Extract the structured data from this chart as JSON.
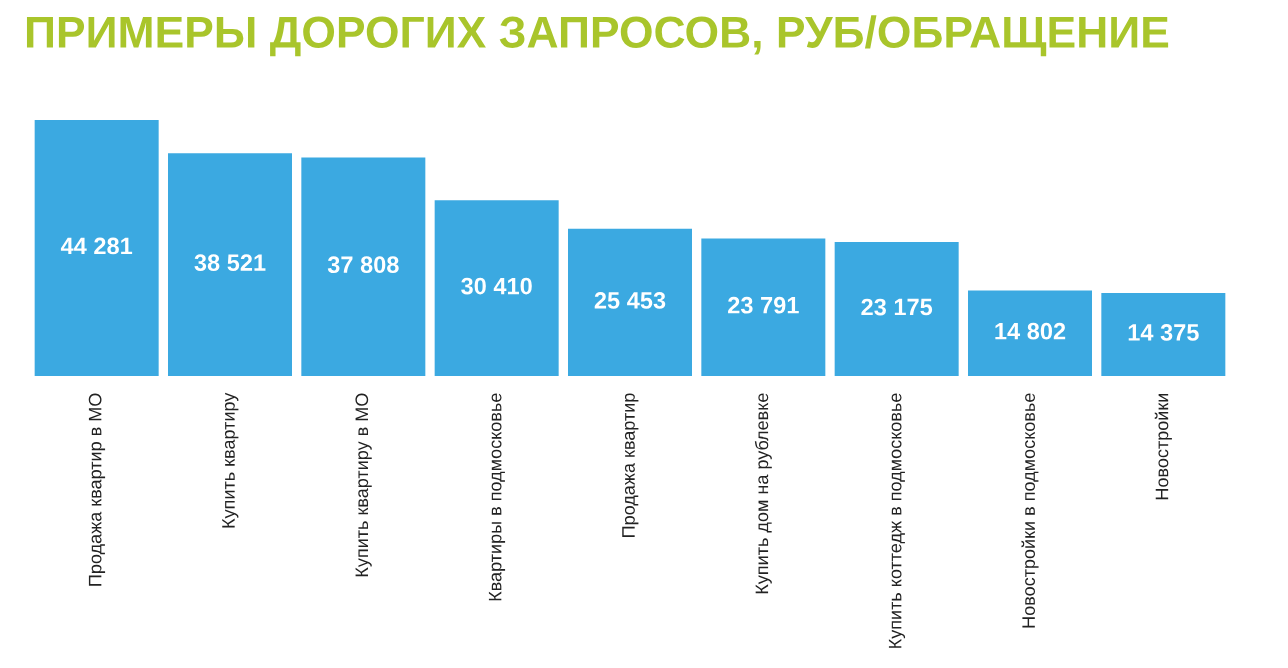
{
  "chart_data": {
    "type": "bar",
    "title": "ПРИМЕРЫ ДОРОГИХ ЗАПРОСОВ, РУБ/ОБРАЩЕНИЕ",
    "categories": [
      "Продажа квартир в МО",
      "Купить квартиру",
      "Купить квартиру в МО",
      "Квартиры в подмосковье",
      "Продажа квартир",
      "Купить дом на рублевке",
      "Купить коттедж в подмосковье",
      "Новостройки в подмосковье",
      "Новостройки"
    ],
    "values": [
      44281,
      38521,
      37808,
      30410,
      25453,
      23791,
      23175,
      14802,
      14375
    ],
    "value_labels": [
      "44 281",
      "38 521",
      "37 808",
      "30 410",
      "25 453",
      "23 791",
      "23 175",
      "14 802",
      "14 375"
    ],
    "color": "#3ba9e1",
    "tick_labels": "x",
    "grid": false,
    "legend": false
  }
}
